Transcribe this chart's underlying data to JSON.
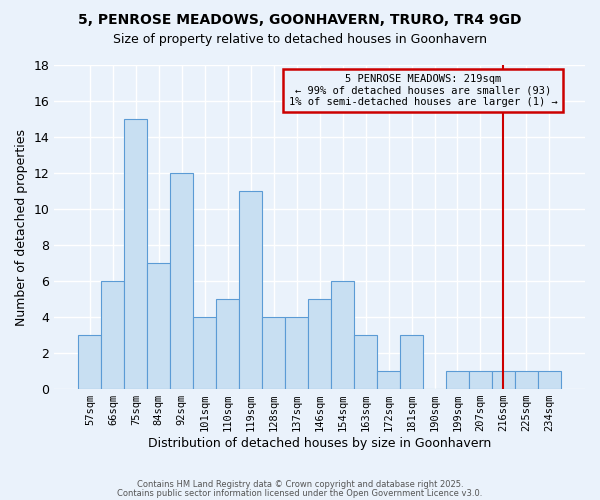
{
  "title": "5, PENROSE MEADOWS, GOONHAVERN, TRURO, TR4 9GD",
  "subtitle": "Size of property relative to detached houses in Goonhavern",
  "xlabel": "Distribution of detached houses by size in Goonhavern",
  "ylabel": "Number of detached properties",
  "categories": [
    "57sqm",
    "66sqm",
    "75sqm",
    "84sqm",
    "92sqm",
    "101sqm",
    "110sqm",
    "119sqm",
    "128sqm",
    "137sqm",
    "146sqm",
    "154sqm",
    "163sqm",
    "172sqm",
    "181sqm",
    "190sqm",
    "199sqm",
    "207sqm",
    "216sqm",
    "225sqm",
    "234sqm"
  ],
  "values": [
    3,
    6,
    15,
    7,
    12,
    4,
    5,
    11,
    4,
    4,
    5,
    6,
    3,
    1,
    3,
    0,
    1,
    1,
    1,
    1,
    1
  ],
  "bar_color": "#c8dff2",
  "bar_edge_color": "#5b9bd5",
  "highlight_color": "#cc0000",
  "highlight_index": 18,
  "ylim": [
    0,
    18
  ],
  "yticks": [
    0,
    2,
    4,
    6,
    8,
    10,
    12,
    14,
    16,
    18
  ],
  "background_color": "#eaf2fb",
  "grid_color": "#d0d8e0",
  "annotation_text": "5 PENROSE MEADOWS: 219sqm\n← 99% of detached houses are smaller (93)\n1% of semi-detached houses are larger (1) →",
  "annotation_box_edgecolor": "#cc0000",
  "vline_color": "#cc0000",
  "footer1": "Contains HM Land Registry data © Crown copyright and database right 2025.",
  "footer2": "Contains public sector information licensed under the Open Government Licence v3.0."
}
